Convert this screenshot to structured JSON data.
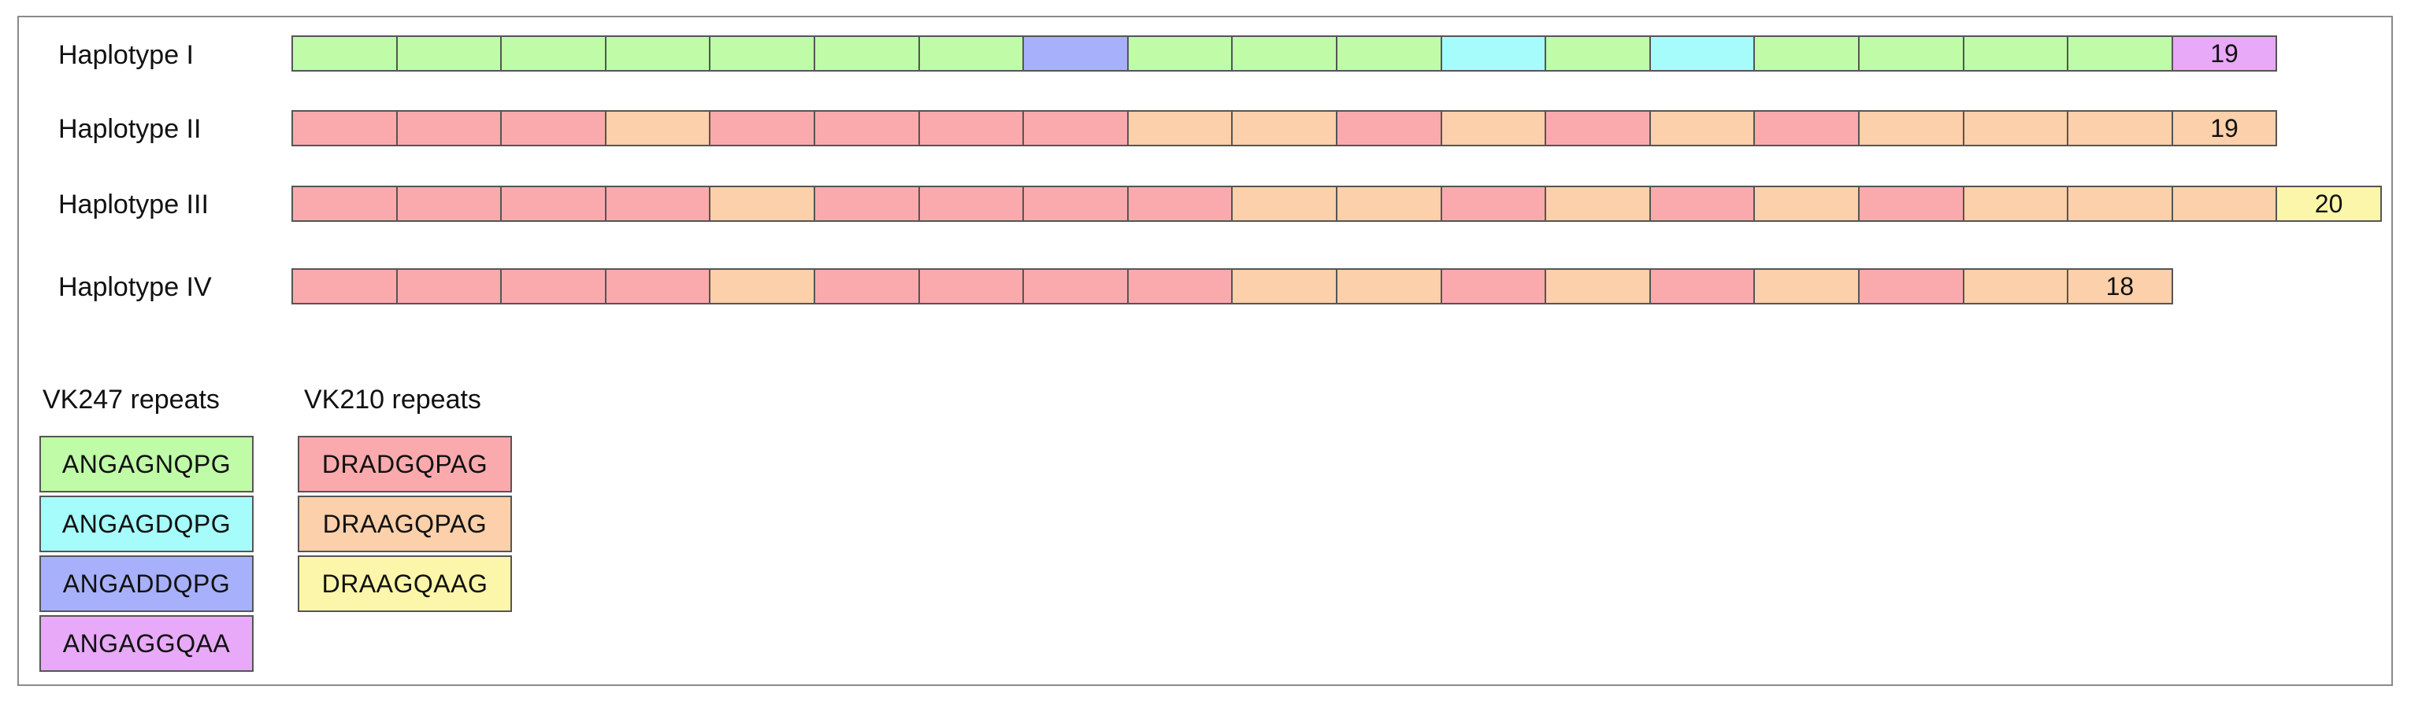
{
  "colors": {
    "ANGAGNQPG": "#c0fba8",
    "ANGAGDQPG": "#a6fbfb",
    "ANGADDQPG": "#a7b0fa",
    "ANGAGGQAA": "#e8a9f9",
    "DRADGQPAG": "#faaaad",
    "DRAAGQPAG": "#fbd0aa",
    "DRAAGQAAG": "#fcf6aa"
  },
  "haplotypes": [
    {
      "label": "Haplotype I",
      "count_label": "19",
      "repeats": [
        "ANGAGNQPG",
        "ANGAGNQPG",
        "ANGAGNQPG",
        "ANGAGNQPG",
        "ANGAGNQPG",
        "ANGAGNQPG",
        "ANGAGNQPG",
        "ANGADDQPG",
        "ANGAGNQPG",
        "ANGAGNQPG",
        "ANGAGNQPG",
        "ANGAGDQPG",
        "ANGAGNQPG",
        "ANGAGDQPG",
        "ANGAGNQPG",
        "ANGAGNQPG",
        "ANGAGNQPG",
        "ANGAGNQPG",
        "ANGAGGQAA"
      ]
    },
    {
      "label": "Haplotype II",
      "count_label": "19",
      "repeats": [
        "DRADGQPAG",
        "DRADGQPAG",
        "DRADGQPAG",
        "DRAAGQPAG",
        "DRADGQPAG",
        "DRADGQPAG",
        "DRADGQPAG",
        "DRADGQPAG",
        "DRAAGQPAG",
        "DRAAGQPAG",
        "DRADGQPAG",
        "DRAAGQPAG",
        "DRADGQPAG",
        "DRAAGQPAG",
        "DRADGQPAG",
        "DRAAGQPAG",
        "DRAAGQPAG",
        "DRAAGQPAG",
        "DRAAGQPAG"
      ]
    },
    {
      "label": "Haplotype III",
      "count_label": "20",
      "repeats": [
        "DRADGQPAG",
        "DRADGQPAG",
        "DRADGQPAG",
        "DRADGQPAG",
        "DRAAGQPAG",
        "DRADGQPAG",
        "DRADGQPAG",
        "DRADGQPAG",
        "DRADGQPAG",
        "DRAAGQPAG",
        "DRAAGQPAG",
        "DRADGQPAG",
        "DRAAGQPAG",
        "DRADGQPAG",
        "DRAAGQPAG",
        "DRADGQPAG",
        "DRAAGQPAG",
        "DRAAGQPAG",
        "DRAAGQPAG",
        "DRAAGQAAG"
      ]
    },
    {
      "label": "Haplotype IV",
      "count_label": "18",
      "repeats": [
        "DRADGQPAG",
        "DRADGQPAG",
        "DRADGQPAG",
        "DRADGQPAG",
        "DRAAGQPAG",
        "DRADGQPAG",
        "DRADGQPAG",
        "DRADGQPAG",
        "DRADGQPAG",
        "DRAAGQPAG",
        "DRAAGQPAG",
        "DRADGQPAG",
        "DRAAGQPAG",
        "DRADGQPAG",
        "DRAAGQPAG",
        "DRADGQPAG",
        "DRAAGQPAG",
        "DRAAGQPAG"
      ]
    }
  ],
  "legend": {
    "vk247": {
      "title": "VK247 repeats",
      "items": [
        "ANGAGNQPG",
        "ANGAGDQPG",
        "ANGADDQPG",
        "ANGAGGQAA"
      ]
    },
    "vk210": {
      "title": "VK210 repeats",
      "items": [
        "DRADGQPAG",
        "DRAAGQPAG",
        "DRAAGQAAG"
      ]
    }
  }
}
